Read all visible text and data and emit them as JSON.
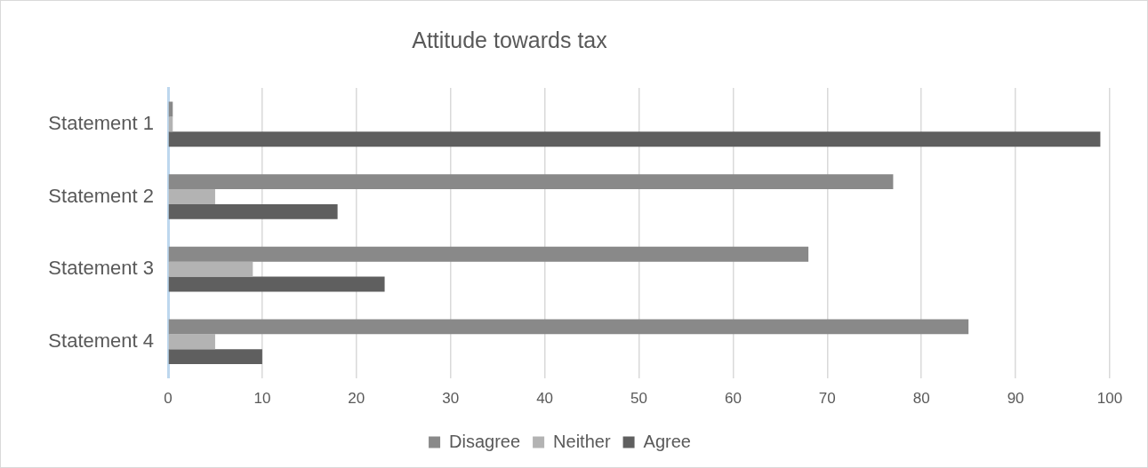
{
  "chart_data": {
    "type": "bar",
    "orientation": "horizontal",
    "title": "Attitude towards tax",
    "categories": [
      "Statement 1",
      "Statement 2",
      "Statement 3",
      "Statement 4"
    ],
    "series": [
      {
        "name": "Disagree",
        "color": "#898989",
        "values": [
          0.5,
          77,
          68,
          85
        ]
      },
      {
        "name": "Neither",
        "color": "#b3b3b3",
        "values": [
          0.5,
          5,
          9,
          5
        ]
      },
      {
        "name": "Agree",
        "color": "#5f5f5f",
        "values": [
          99,
          18,
          23,
          10
        ]
      }
    ],
    "xlim": [
      0,
      100
    ],
    "xticks": [
      0,
      10,
      20,
      30,
      40,
      50,
      60,
      70,
      80,
      90,
      100
    ],
    "grid": "x",
    "legend": "bottom"
  }
}
